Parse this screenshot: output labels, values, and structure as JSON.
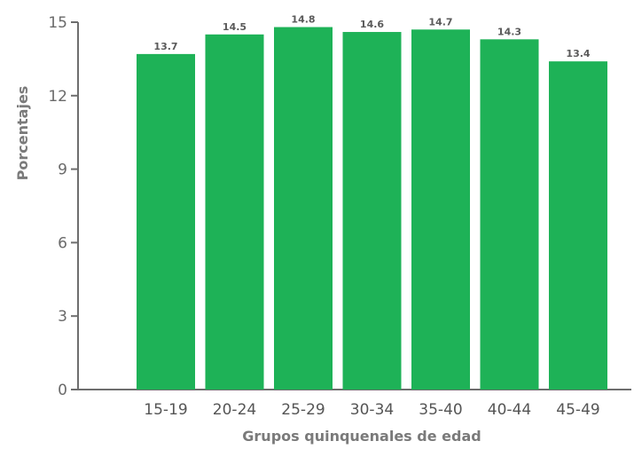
{
  "chart_data": {
    "type": "bar",
    "title": "",
    "xlabel": "Grupos quinquenales de edad",
    "ylabel": "Porcentajes",
    "categories": [
      "15-19",
      "20-24",
      "25-29",
      "30-34",
      "35-40",
      "40-44",
      "45-49"
    ],
    "values": [
      13.7,
      14.5,
      14.8,
      14.6,
      14.7,
      14.3,
      13.4
    ],
    "data_labels": [
      "13.7",
      "14.5",
      "14.8",
      "14.6",
      "14.7",
      "14.3",
      "13.4"
    ],
    "ylim": [
      0,
      15
    ],
    "yticks": [
      0,
      3,
      6,
      9,
      12,
      15
    ],
    "ytick_labels": [
      "0",
      "3",
      "6",
      "9",
      "12",
      "15"
    ],
    "grid": false,
    "legend": "none",
    "colors": {
      "bar": "#1eb257",
      "axis": "#6e6e6e"
    }
  }
}
